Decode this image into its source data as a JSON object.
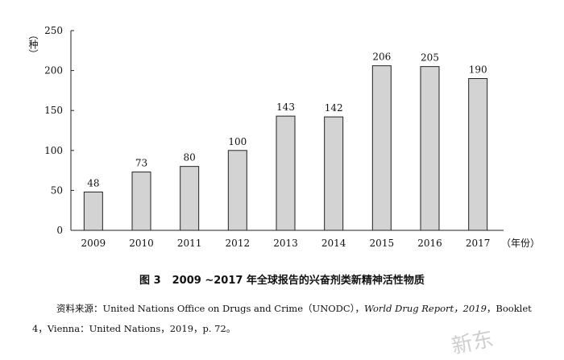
{
  "chart_data": {
    "type": "bar",
    "categories": [
      "2009",
      "2010",
      "2011",
      "2012",
      "2013",
      "2014",
      "2015",
      "2016",
      "2017"
    ],
    "values": [
      48,
      73,
      80,
      100,
      143,
      142,
      206,
      205,
      190
    ],
    "ylim": [
      0,
      250
    ],
    "yticks": [
      0,
      50,
      100,
      150,
      200,
      250
    ],
    "ylabel": "（种）",
    "xlabel": "（年份）",
    "bar_color": "#d3d3d3",
    "bar_stroke": "#222222",
    "grid": false,
    "legend": "none"
  },
  "caption": {
    "number": "图 3",
    "title": "2009 ~2017 年全球报告的兴奋剂类新精神活性物质"
  },
  "source": {
    "prefix": "资料来源：United Nations Office on Drugs and Crime（UNODC），",
    "report": "World Drug Report，2019",
    "suffix": "，Booklet 4，Vienna：United Nations，2019，p. 72。"
  },
  "watermark": "新东"
}
